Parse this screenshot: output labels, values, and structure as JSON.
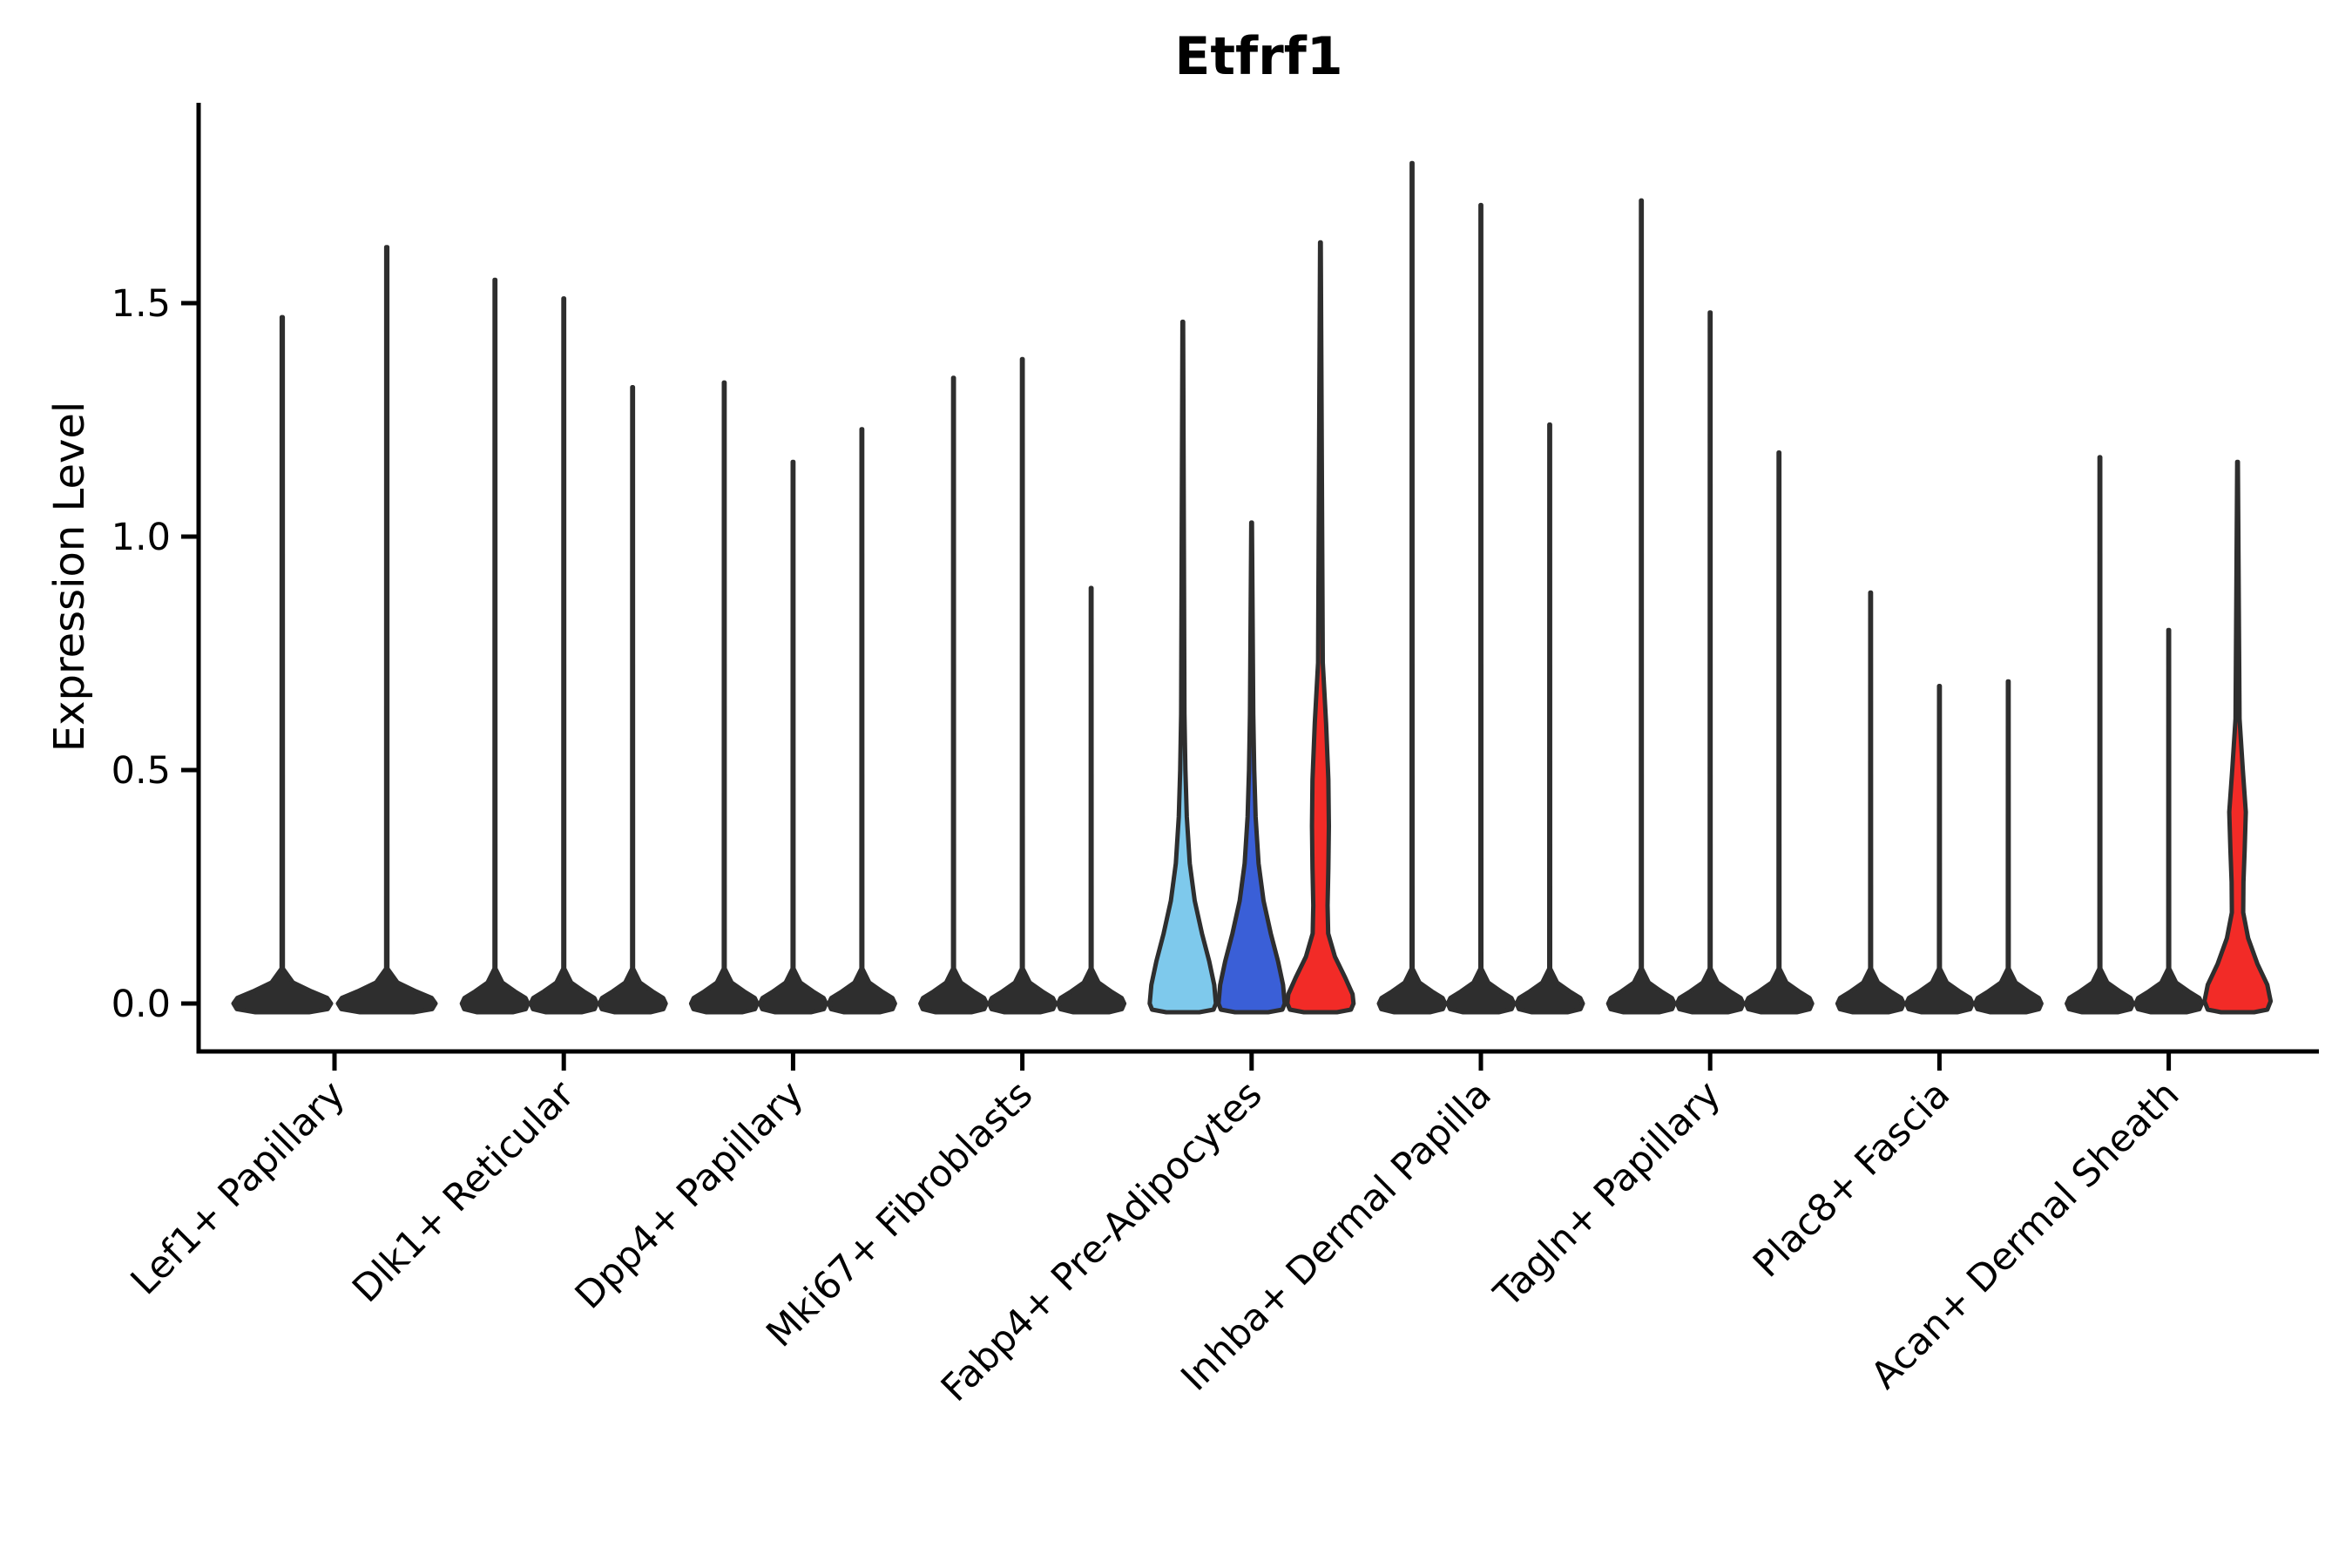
{
  "chart_data": {
    "type": "violin",
    "title": "Etfrf1",
    "ylabel": "Expression Level",
    "xlabel": "",
    "ylim": [
      -0.06,
      1.93
    ],
    "yticks": [
      0.0,
      0.5,
      1.0,
      1.5
    ],
    "yticklabels": [
      "0.0",
      "0.5",
      "1.0",
      "1.5"
    ],
    "grid": false,
    "legend_position": "none",
    "categories": [
      "Lef1+ Papillary",
      "Dlk1+ Reticular",
      "Dpp4+ Papillary",
      "Mki67+ Fibroblasts",
      "Fabp4+ Pre-Adipocytes",
      "Inhba+ Dermal Papilla",
      "Tagln+ Papillary",
      "Plac8+ Fascia",
      "Acan+ Dermal Sheath"
    ],
    "colors": {
      "dark": "#2E2E2E",
      "light_blue": "#7EC9EC",
      "blue": "#3A5FD7",
      "red": "#F22B27",
      "axis": "#000000"
    },
    "groups": [
      {
        "category": "Lef1+ Papillary",
        "violins": [
          {
            "max_expression": 1.47,
            "color": "dark",
            "shape": "spike"
          },
          {
            "max_expression": 1.62,
            "color": "dark",
            "shape": "spike"
          }
        ]
      },
      {
        "category": "Dlk1+ Reticular",
        "violins": [
          {
            "max_expression": 1.55,
            "color": "dark",
            "shape": "spike"
          },
          {
            "max_expression": 1.51,
            "color": "dark",
            "shape": "spike"
          },
          {
            "max_expression": 1.32,
            "color": "dark",
            "shape": "spike"
          }
        ]
      },
      {
        "category": "Dpp4+ Papillary",
        "violins": [
          {
            "max_expression": 1.33,
            "color": "dark",
            "shape": "spike"
          },
          {
            "max_expression": 1.16,
            "color": "dark",
            "shape": "spike"
          },
          {
            "max_expression": 1.23,
            "color": "dark",
            "shape": "spike"
          }
        ]
      },
      {
        "category": "Mki67+ Fibroblasts",
        "violins": [
          {
            "max_expression": 1.34,
            "color": "dark",
            "shape": "spike"
          },
          {
            "max_expression": 1.38,
            "color": "dark",
            "shape": "spike"
          },
          {
            "max_expression": 0.89,
            "color": "dark",
            "shape": "spike"
          }
        ]
      },
      {
        "category": "Fabp4+ Pre-Adipocytes",
        "violins": [
          {
            "max_expression": 1.46,
            "color": "light_blue",
            "shape": "funnel"
          },
          {
            "max_expression": 1.03,
            "color": "blue",
            "shape": "funnel"
          },
          {
            "max_expression": 1.63,
            "color": "red",
            "shape": "column"
          }
        ]
      },
      {
        "category": "Inhba+ Dermal Papilla",
        "violins": [
          {
            "max_expression": 1.8,
            "color": "dark",
            "shape": "spike"
          },
          {
            "max_expression": 1.71,
            "color": "dark",
            "shape": "spike"
          },
          {
            "max_expression": 1.24,
            "color": "dark",
            "shape": "spike"
          }
        ]
      },
      {
        "category": "Tagln+ Papillary",
        "violins": [
          {
            "max_expression": 1.72,
            "color": "dark",
            "shape": "spike"
          },
          {
            "max_expression": 1.48,
            "color": "dark",
            "shape": "spike"
          },
          {
            "max_expression": 1.18,
            "color": "dark",
            "shape": "spike"
          }
        ]
      },
      {
        "category": "Plac8+ Fascia",
        "violins": [
          {
            "max_expression": 0.88,
            "color": "dark",
            "shape": "spike"
          },
          {
            "max_expression": 0.68,
            "color": "dark",
            "shape": "spike"
          },
          {
            "max_expression": 0.69,
            "color": "dark",
            "shape": "spike"
          }
        ]
      },
      {
        "category": "Acan+ Dermal Sheath",
        "violins": [
          {
            "max_expression": 1.17,
            "color": "dark",
            "shape": "spike"
          },
          {
            "max_expression": 0.8,
            "color": "dark",
            "shape": "spike"
          },
          {
            "max_expression": 1.16,
            "color": "red",
            "shape": "spindle"
          }
        ]
      }
    ]
  }
}
